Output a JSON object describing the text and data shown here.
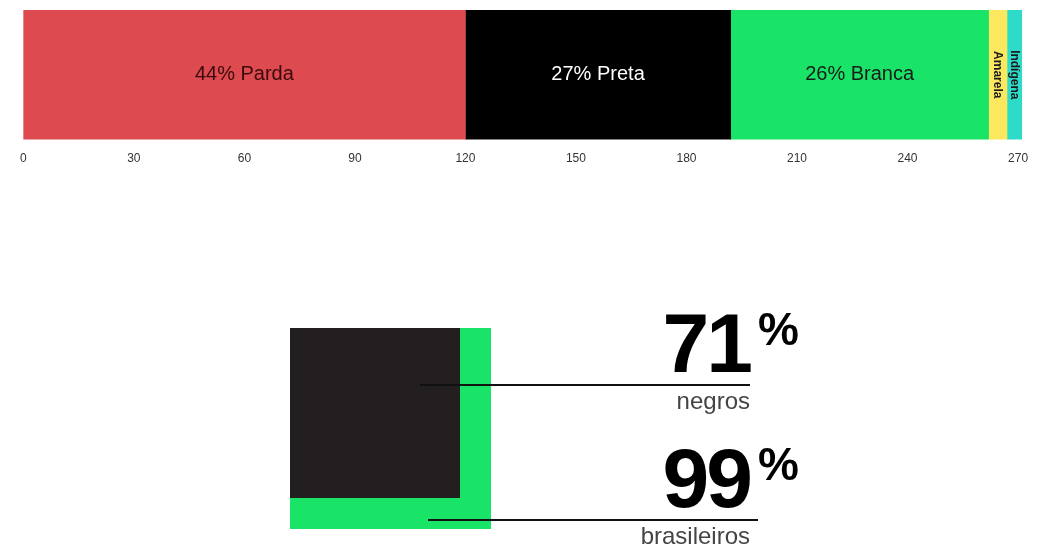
{
  "chart_data": [
    {
      "type": "bar",
      "orientation": "horizontal",
      "stacked": true,
      "categories": [
        null
      ],
      "xlim": [
        0,
        272
      ],
      "xticks": [
        0,
        30,
        60,
        90,
        120,
        150,
        180,
        210,
        240,
        270
      ],
      "grid": false,
      "legend": false,
      "series": [
        {
          "color": "#dd4a4f",
          "values": [
            120
          ]
        },
        {
          "color": "#000000",
          "values": [
            72
          ]
        },
        {
          "color": "#19e468",
          "values": [
            70
          ]
        },
        {
          "color": "#fbe85f",
          "values": [
            5
          ]
        },
        {
          "color": "#2ddbc8",
          "values": [
            4
          ]
        }
      ],
      "annotations": [
        "44% Parda",
        "27% Preta",
        "26% Branca",
        "Amarela",
        "Indígena"
      ]
    },
    {
      "type": "other",
      "categories": [
        "negros",
        "brasileiros"
      ],
      "values": [
        71,
        99
      ],
      "value_labels": [
        "71%",
        "99%"
      ],
      "colors": [
        "#231f20",
        "#19e468"
      ]
    }
  ]
}
